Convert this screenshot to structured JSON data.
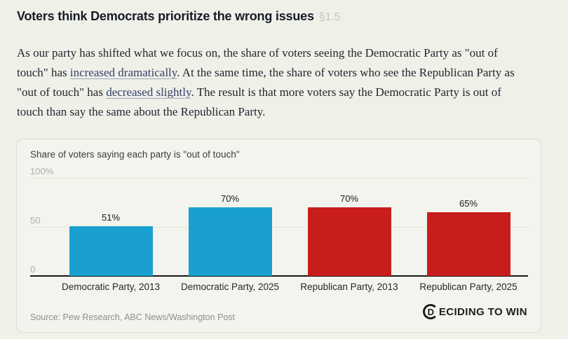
{
  "heading": {
    "title": "Voters think Democrats prioritize the wrong issues",
    "section_ref": "§1.5"
  },
  "paragraph": {
    "p1": "As our party has shifted what we focus on, the share of voters seeing the Democratic Party as \"out of touch\" has ",
    "link1": "increased dramatically",
    "p2": ". At the same time, the share of voters who see the Republican Party as \"out of touch\" has ",
    "link2": "decreased slightly",
    "p3": ". The result is that more voters say the Democratic Party is out of touch than say the same about the Republican Party."
  },
  "chart_card": {
    "source": "Source: Pew Research, ABC News/Washington Post",
    "logo": {
      "d": "D",
      "rest": "ECIDING TO WIN"
    }
  },
  "chart_data": {
    "type": "bar",
    "title": "Share of voters saying each party is \"out of touch\"",
    "categories": [
      "Democratic Party, 2013",
      "Democratic Party, 2025",
      "Republican Party, 2013",
      "Republican Party, 2025"
    ],
    "values": [
      51,
      70,
      70,
      65
    ],
    "value_labels": [
      "51%",
      "70%",
      "70%",
      "65%"
    ],
    "bar_colors": [
      "#1aa0cf",
      "#1aa0cf",
      "#c91d1d",
      "#c91d1d"
    ],
    "colors": {
      "dem_blue": "#1aa0cf",
      "rep_red": "#c91d1d"
    },
    "ylim": [
      0,
      100
    ],
    "yticks": [
      {
        "value": 0,
        "label": "0"
      },
      {
        "value": 50,
        "label": "50"
      },
      {
        "value": 100,
        "label": "100%"
      }
    ],
    "grid": true,
    "legend": "none",
    "xlabel": "",
    "ylabel": ""
  }
}
